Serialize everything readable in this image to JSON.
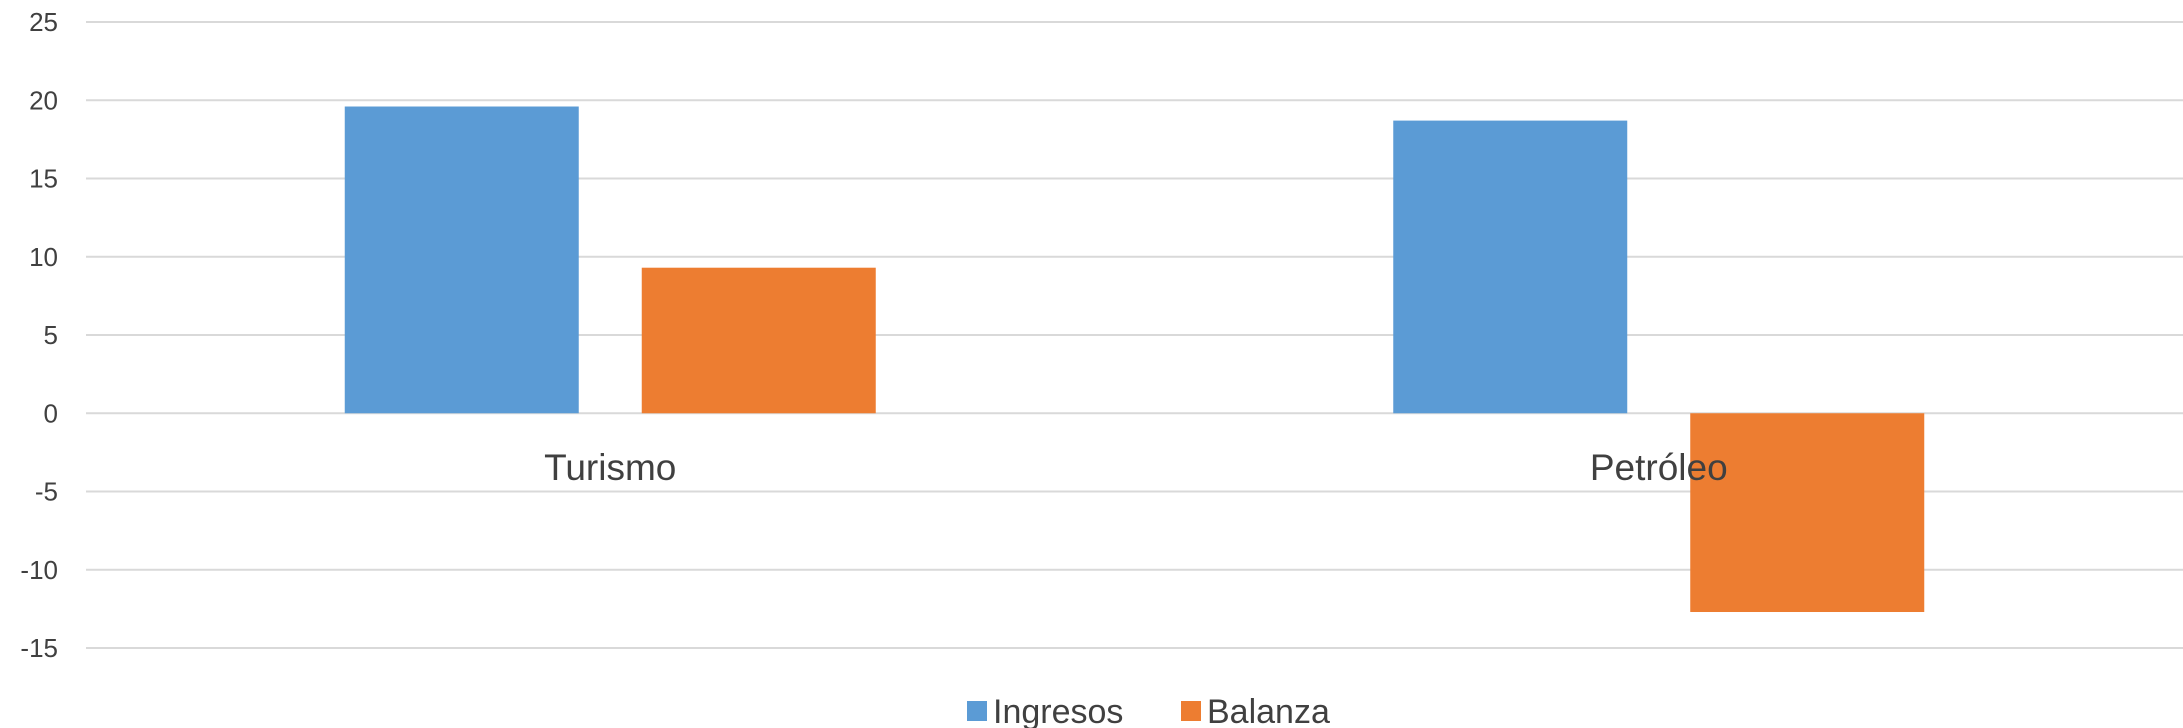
{
  "chart_data": {
    "type": "bar",
    "title": "",
    "xlabel": "",
    "ylabel": "",
    "categories": [
      "Turismo",
      "Petróleo"
    ],
    "series": [
      {
        "name": "Ingresos",
        "color": "#5B9BD5",
        "values": [
          19.6,
          18.7
        ]
      },
      {
        "name": "Balanza",
        "color": "#ED7D31",
        "values": [
          9.3,
          -12.7
        ]
      }
    ],
    "ylim": [
      -15,
      25
    ],
    "yticks": [
      25,
      20,
      15,
      10,
      5,
      0,
      -5,
      -10,
      -15
    ],
    "grid": true,
    "legend_position": "bottom"
  }
}
